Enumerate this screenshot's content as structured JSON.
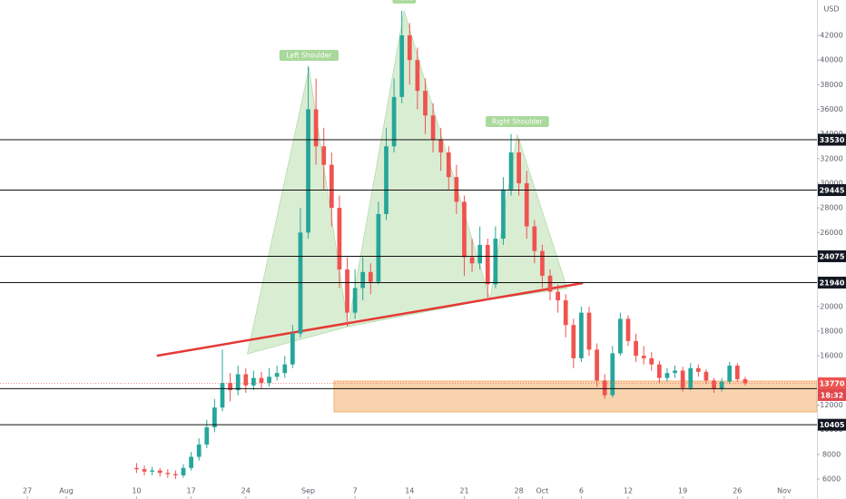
{
  "chart_data": {
    "type": "candlestick",
    "currency": "USD",
    "up_color": "#26a69a",
    "down_color": "#ef5350",
    "grid": false,
    "x": [
      14,
      15,
      16,
      17,
      18,
      19,
      20,
      21,
      22,
      23,
      24,
      25,
      26,
      27,
      28,
      29,
      30,
      31,
      32,
      33,
      34,
      35,
      36,
      37,
      38,
      39,
      40,
      41,
      42,
      43,
      44,
      45,
      46,
      47,
      48,
      49,
      50,
      51,
      52,
      53,
      54,
      55,
      56,
      57,
      58,
      59,
      60,
      61,
      62,
      63,
      64,
      65,
      66,
      67,
      68,
      69,
      70,
      71,
      72,
      73,
      74,
      75,
      76,
      77,
      78,
      79,
      80,
      81,
      82,
      83,
      84,
      85,
      86,
      87,
      88,
      89,
      90,
      91,
      92
    ],
    "open": [
      6900,
      6800,
      6600,
      6700,
      6500,
      6400,
      6300,
      6900,
      7800,
      8800,
      10200,
      11800,
      13800,
      13200,
      14500,
      13600,
      14200,
      13800,
      14300,
      14600,
      15300,
      17800,
      26000,
      36000,
      33000,
      31500,
      28000,
      23000,
      19500,
      21500,
      22800,
      22000,
      27500,
      33000,
      37000,
      42000,
      40000,
      37500,
      35500,
      33500,
      32500,
      30500,
      28500,
      24000,
      23500,
      25000,
      21800,
      25500,
      29500,
      32500,
      30000,
      26500,
      24500,
      22500,
      21200,
      20500,
      18500,
      15800,
      19500,
      16500,
      14000,
      12800,
      16200,
      19000,
      17200,
      16000,
      15800,
      15300,
      14200,
      14600,
      14800,
      13400,
      15000,
      14700,
      14000,
      13300,
      13900,
      15200,
      14100
    ],
    "high": [
      7300,
      7100,
      7000,
      6900,
      6800,
      6700,
      7200,
      8200,
      9300,
      10800,
      12500,
      16500,
      14600,
      15200,
      15000,
      14800,
      14700,
      15000,
      15200,
      16000,
      18500,
      28000,
      39500,
      38500,
      34500,
      32500,
      29000,
      24000,
      23000,
      24000,
      23500,
      28500,
      34500,
      38500,
      44000,
      43000,
      41000,
      38500,
      36500,
      34500,
      33000,
      31500,
      29000,
      25500,
      26500,
      25500,
      26500,
      30500,
      34000,
      33500,
      31000,
      27000,
      25000,
      23000,
      21800,
      21000,
      19000,
      20000,
      20000,
      17000,
      14500,
      16800,
      19500,
      19300,
      17800,
      16800,
      16300,
      15600,
      15000,
      15200,
      15100,
      15400,
      15300,
      14900,
      14200,
      14200,
      15500,
      15400,
      14300
    ],
    "low": [
      6500,
      6300,
      6300,
      6200,
      6100,
      6000,
      6100,
      6700,
      7500,
      8500,
      9800,
      11500,
      12300,
      12800,
      13000,
      13200,
      13300,
      13500,
      14000,
      14200,
      15000,
      17500,
      25500,
      31500,
      29500,
      26500,
      21500,
      18400,
      19000,
      20500,
      21000,
      21800,
      27000,
      32500,
      36500,
      38000,
      36000,
      34000,
      32500,
      31000,
      29500,
      27500,
      22500,
      22800,
      23000,
      20500,
      21500,
      25000,
      29000,
      29000,
      25500,
      23500,
      21500,
      20500,
      19500,
      17500,
      15000,
      15500,
      16000,
      13500,
      12500,
      12600,
      16000,
      16800,
      15500,
      15300,
      14800,
      13800,
      13900,
      14200,
      13100,
      13200,
      14300,
      13700,
      13000,
      13100,
      13700,
      13900,
      13600
    ],
    "close": [
      6800,
      6600,
      6700,
      6500,
      6400,
      6300,
      6900,
      7800,
      8800,
      10200,
      11800,
      13800,
      13200,
      14500,
      13600,
      14200,
      13800,
      14300,
      14600,
      15300,
      17800,
      26000,
      36000,
      33000,
      31500,
      28000,
      23000,
      19500,
      21500,
      22800,
      22000,
      27500,
      33000,
      37000,
      42000,
      40000,
      37500,
      35500,
      33500,
      32500,
      30500,
      28500,
      24000,
      23500,
      25000,
      21800,
      25500,
      29500,
      32500,
      30000,
      26500,
      24500,
      22500,
      21200,
      20500,
      18500,
      15800,
      19500,
      16500,
      14000,
      12800,
      16200,
      19000,
      17200,
      16000,
      15800,
      15300,
      14200,
      14600,
      14800,
      13400,
      15000,
      14700,
      14000,
      13300,
      13900,
      15200,
      14100,
      13770
    ],
    "xlim": [
      -3.5,
      101.2
    ],
    "xticks": [
      {
        "value": 0,
        "label": "27"
      },
      {
        "value": 5,
        "label": "Aug"
      },
      {
        "value": 14,
        "label": "10"
      },
      {
        "value": 21,
        "label": "17"
      },
      {
        "value": 28,
        "label": "24"
      },
      {
        "value": 36,
        "label": "Sep"
      },
      {
        "value": 42,
        "label": "7"
      },
      {
        "value": 49,
        "label": "14"
      },
      {
        "value": 56,
        "label": "21"
      },
      {
        "value": 63,
        "label": "28"
      },
      {
        "value": 66,
        "label": "Oct"
      },
      {
        "value": 71,
        "label": "6"
      },
      {
        "value": 77,
        "label": "12"
      },
      {
        "value": 84,
        "label": "19"
      },
      {
        "value": 91,
        "label": "26"
      },
      {
        "value": 97,
        "label": "Nov"
      }
    ],
    "ylim": [
      4380,
      44870
    ],
    "yticks": [
      6000,
      8000,
      10000,
      12000,
      14000,
      16000,
      18000,
      20000,
      22000,
      24000,
      26000,
      28000,
      30000,
      32000,
      34000,
      36000,
      38000,
      40000,
      42000
    ],
    "levels": [
      33530,
      29445,
      24075,
      21940,
      13335,
      10405
    ],
    "last_price": 13770,
    "countdown": "18:32",
    "trendline": {
      "x": [
        16.6,
        71.2
      ],
      "y": [
        16000,
        21900
      ],
      "color": "#e53935"
    },
    "zone": {
      "x": [
        39.3,
        101.2
      ],
      "y": [
        11450,
        13950
      ],
      "color": "#f7c899"
    },
    "patterns": [
      {
        "label": "Left Shoulder",
        "x": [
          28.2,
          36.1,
          41.1
        ],
        "y": [
          16150,
          39350,
          18370
        ]
      },
      {
        "label": "Head",
        "x": [
          41.1,
          48.3,
          59.3
        ],
        "y": [
          18370,
          44000,
          20575
        ]
      },
      {
        "label": "Right Shoulder",
        "x": [
          59.3,
          62.8,
          69.2
        ],
        "y": [
          20575,
          33970,
          21460
        ]
      }
    ]
  }
}
